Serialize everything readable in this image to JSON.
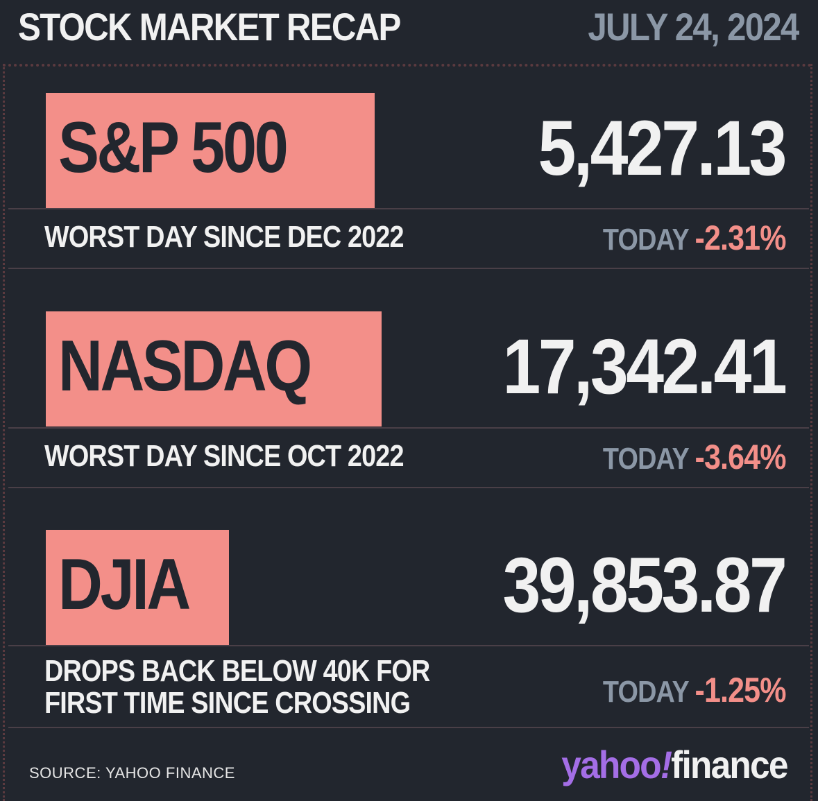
{
  "header": {
    "title": "STOCK MARKET RECAP",
    "date": "JULY 24, 2024"
  },
  "indices": [
    {
      "name": "S&P 500",
      "value": "5,427.13",
      "note_lines": [
        "WORST DAY SINCE DEC 2022"
      ],
      "today_label": "TODAY",
      "today_change": "-2.31%"
    },
    {
      "name": "NASDAQ",
      "value": "17,342.41",
      "note_lines": [
        "WORST DAY SINCE OCT 2022"
      ],
      "today_label": "TODAY",
      "today_change": "-3.64%"
    },
    {
      "name": "DJIA",
      "value": "39,853.87",
      "note_lines": [
        "DROPS BACK BELOW 40K FOR",
        "FIRST TIME SINCE CROSSING"
      ],
      "today_label": "TODAY",
      "today_change": "-1.25%"
    }
  ],
  "footer": {
    "source": "SOURCE: YAHOO FINANCE",
    "logo_part1": "yahoo",
    "logo_bang": "!",
    "logo_part2": "finance"
  },
  "colors": {
    "background": "#22262e",
    "accent_box": "#f38f89",
    "negative": "#f38f89",
    "muted": "#8b97a6",
    "logo_purple": "#a46ee6"
  }
}
